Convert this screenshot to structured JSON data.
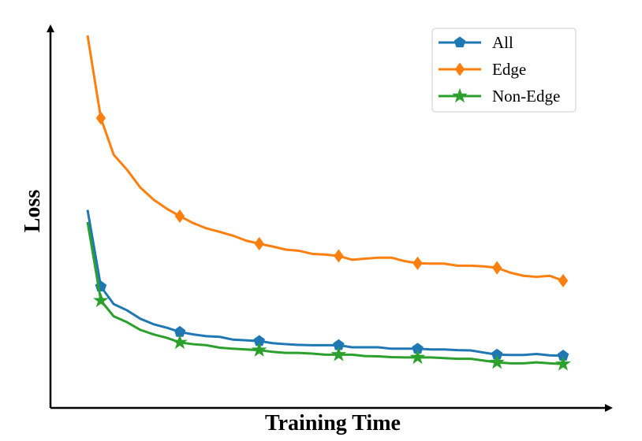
{
  "chart_data": {
    "type": "line",
    "title": "",
    "xlabel": "Training Time",
    "ylabel": "Loss",
    "xlim": [
      0,
      1
    ],
    "ylim": [
      0,
      1
    ],
    "grid": false,
    "legend_position": "top-right",
    "series": [
      {
        "name": "All",
        "color": "#1f77b4",
        "marker": "pentagon",
        "x": [
          0.0,
          0.028,
          0.055,
          0.083,
          0.111,
          0.139,
          0.167,
          0.194,
          0.222,
          0.25,
          0.278,
          0.306,
          0.333,
          0.361,
          0.389,
          0.417,
          0.444,
          0.472,
          0.5,
          0.528,
          0.556,
          0.583,
          0.611,
          0.639,
          0.667,
          0.694,
          0.722,
          0.75,
          0.778,
          0.806,
          0.833,
          0.861,
          0.889,
          0.917,
          0.944,
          0.972,
          1.0
        ],
        "y": [
          0.5,
          0.28,
          0.23,
          0.212,
          0.188,
          0.172,
          0.162,
          0.15,
          0.143,
          0.138,
          0.136,
          0.128,
          0.126,
          0.124,
          0.118,
          0.115,
          0.113,
          0.112,
          0.112,
          0.112,
          0.106,
          0.106,
          0.106,
          0.102,
          0.102,
          0.102,
          0.1,
          0.1,
          0.098,
          0.097,
          0.091,
          0.085,
          0.084,
          0.084,
          0.087,
          0.083,
          0.082
        ],
        "marker_indices": [
          1,
          7,
          13,
          19,
          25,
          31,
          36
        ]
      },
      {
        "name": "Edge",
        "color": "#ff7f0e",
        "marker": "diamond",
        "x": [
          0.0,
          0.028,
          0.055,
          0.083,
          0.111,
          0.139,
          0.167,
          0.194,
          0.222,
          0.25,
          0.278,
          0.306,
          0.333,
          0.361,
          0.389,
          0.417,
          0.444,
          0.472,
          0.5,
          0.528,
          0.556,
          0.583,
          0.611,
          0.639,
          0.667,
          0.694,
          0.722,
          0.75,
          0.778,
          0.806,
          0.833,
          0.861,
          0.889,
          0.917,
          0.944,
          0.972,
          1.0
        ],
        "y": [
          1.0,
          0.763,
          0.658,
          0.615,
          0.564,
          0.529,
          0.503,
          0.482,
          0.462,
          0.447,
          0.437,
          0.426,
          0.412,
          0.403,
          0.395,
          0.386,
          0.383,
          0.374,
          0.372,
          0.368,
          0.357,
          0.36,
          0.363,
          0.363,
          0.353,
          0.347,
          0.346,
          0.346,
          0.34,
          0.34,
          0.338,
          0.334,
          0.32,
          0.311,
          0.308,
          0.311,
          0.297
        ],
        "marker_indices": [
          1,
          7,
          13,
          19,
          25,
          31,
          36
        ]
      },
      {
        "name": "Non-Edge",
        "color": "#2ca02c",
        "marker": "star",
        "x": [
          0.0,
          0.028,
          0.055,
          0.083,
          0.111,
          0.139,
          0.167,
          0.194,
          0.222,
          0.25,
          0.278,
          0.306,
          0.333,
          0.361,
          0.389,
          0.417,
          0.444,
          0.472,
          0.5,
          0.528,
          0.556,
          0.583,
          0.611,
          0.639,
          0.667,
          0.694,
          0.722,
          0.75,
          0.778,
          0.806,
          0.833,
          0.861,
          0.889,
          0.917,
          0.944,
          0.972,
          1.0
        ],
        "y": [
          0.465,
          0.24,
          0.195,
          0.178,
          0.156,
          0.143,
          0.133,
          0.12,
          0.115,
          0.112,
          0.105,
          0.102,
          0.1,
          0.098,
          0.093,
          0.09,
          0.09,
          0.088,
          0.085,
          0.085,
          0.085,
          0.081,
          0.08,
          0.078,
          0.077,
          0.077,
          0.077,
          0.075,
          0.073,
          0.073,
          0.068,
          0.063,
          0.06,
          0.06,
          0.063,
          0.06,
          0.058
        ],
        "marker_indices": [
          1,
          7,
          13,
          19,
          25,
          31,
          36
        ]
      }
    ]
  }
}
